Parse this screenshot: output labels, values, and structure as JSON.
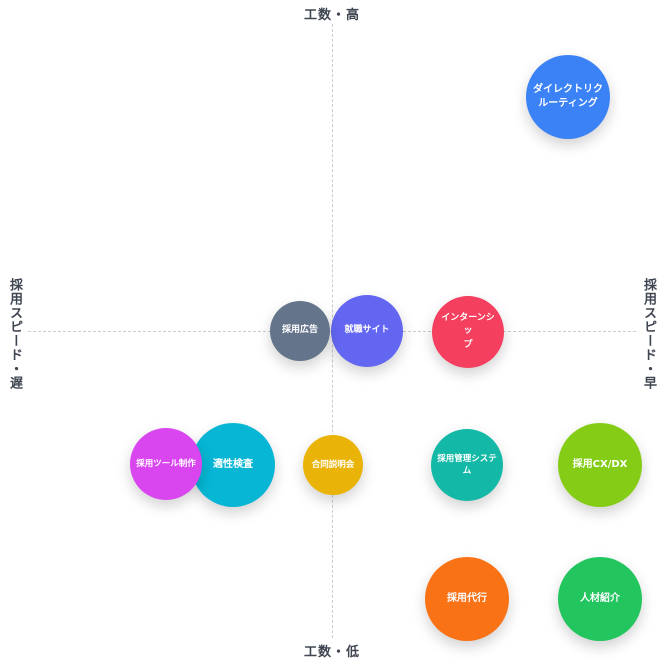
{
  "axes": {
    "top": "工数・高",
    "bottom": "工数・低",
    "left": "採用スピード・遅",
    "right": "採用スピード・早"
  },
  "items": {
    "direct": {
      "label": "ダイレクトリク\nルーティング",
      "color": "#3b82f6"
    },
    "intern": {
      "label": "インターンシッ\nプ",
      "color": "#f43f5e"
    },
    "shushoku": {
      "label": "就職サイト",
      "color": "#6366f1"
    },
    "koukoku": {
      "label": "採用広告",
      "color": "#64748b"
    },
    "tool": {
      "label": "採用ツール制作",
      "color": "#d946ef"
    },
    "tekisei": {
      "label": "適性検査",
      "color": "#06b6d4"
    },
    "goudou": {
      "label": "合同説明会",
      "color": "#eab308"
    },
    "kanri": {
      "label": "採用管理システ\nム",
      "color": "#14b8a6"
    },
    "cxdx": {
      "label": "採用CX/DX",
      "color": "#84cc16"
    },
    "daikou": {
      "label": "採用代行",
      "color": "#f97316"
    },
    "jinzai": {
      "label": "人材紹介",
      "color": "#22c55e"
    }
  }
}
